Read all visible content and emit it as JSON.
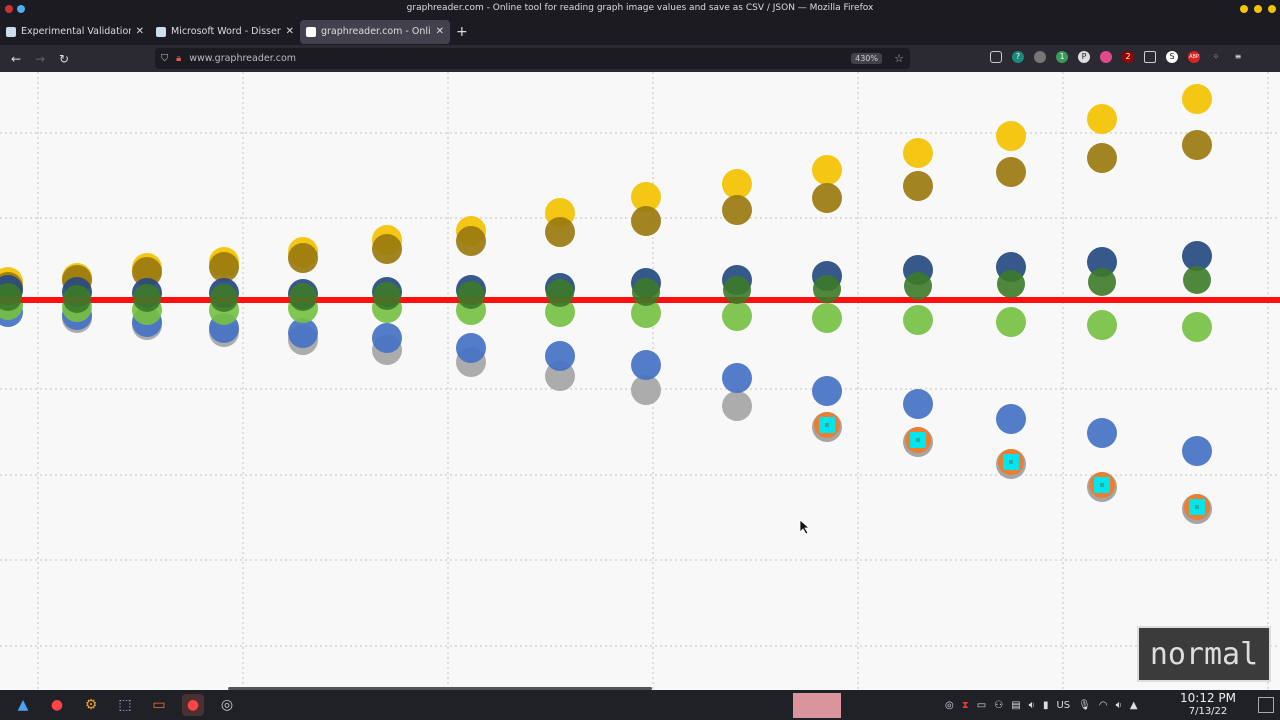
{
  "window": {
    "title": "graphreader.com - Online tool for reading graph image values and save as CSV / JSON — Mozilla Firefox"
  },
  "tabs": [
    {
      "label": "Experimental Validation of",
      "active": false
    },
    {
      "label": "Microsoft Word - Dissertati",
      "active": false
    },
    {
      "label": "graphreader.com - Online t",
      "active": true
    }
  ],
  "nav": {
    "url": "www.graphreader.com",
    "zoom": "430%"
  },
  "extensions": [
    "pocket-icon",
    "help-icon",
    "spy-icon",
    "extension-badge-1",
    "p-icon",
    "pink-icon",
    "ublock-badge-2",
    "reader-icon",
    "s-icon",
    "abp-icon",
    "dots-icon",
    "menu-icon"
  ],
  "extension_badges": {
    "green": "1",
    "ublock": "2"
  },
  "overlay": {
    "mode": "normal"
  },
  "taskbar": {
    "keyboard": "US",
    "time": "10:12 PM",
    "date": "7/13/22"
  },
  "colors": {
    "reference_line": "#ff1010",
    "yellow": "#f2c200",
    "brown": "#9a7a10",
    "navy": "#264a80",
    "darkgreen": "#3c7a28",
    "lightgreen": "#76c043",
    "blue": "#4472c4",
    "gray": "#a5a5a5",
    "orange": "#ed7d31",
    "cyan": "#00e5ee"
  }
}
